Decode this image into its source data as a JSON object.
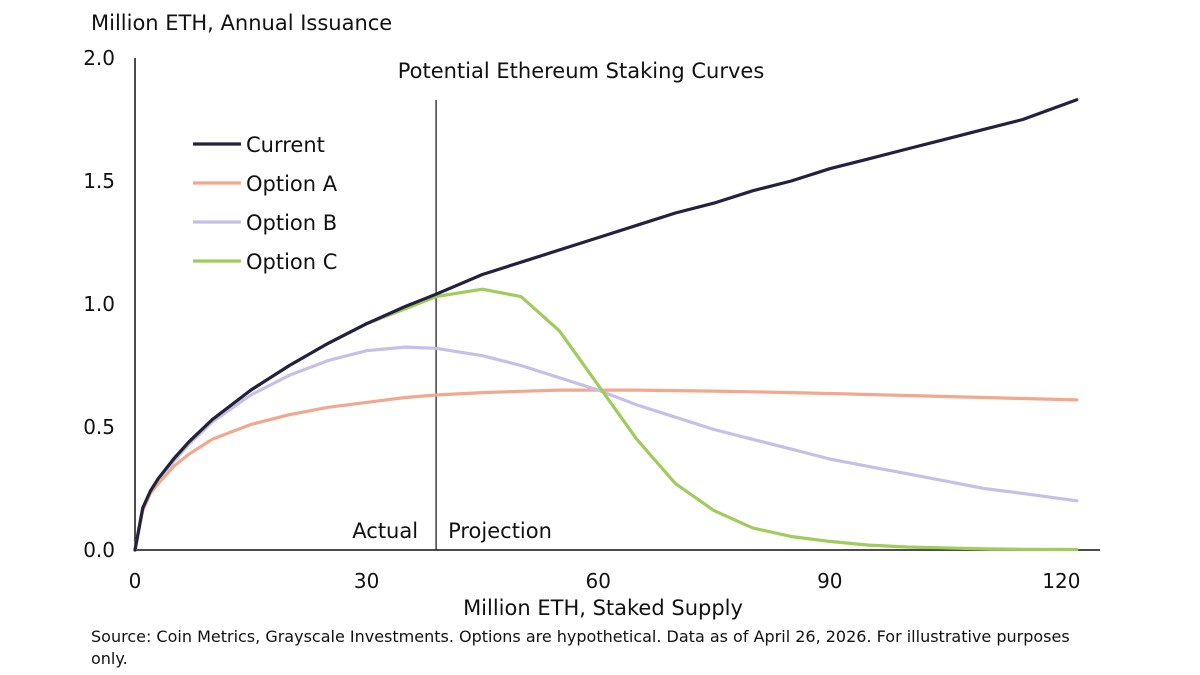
{
  "chart_data": {
    "type": "line",
    "title": "Potential Ethereum Staking Curves",
    "ylabel": "Million ETH, Annual Issuance",
    "xlabel": "Million ETH, Staked Supply",
    "xlim": [
      0,
      125
    ],
    "ylim": [
      0,
      2.0
    ],
    "x_ticks": [
      0,
      30,
      60,
      90,
      120
    ],
    "x_tick_labels": [
      "0",
      "30",
      "60",
      "90",
      "120"
    ],
    "y_ticks": [
      0,
      0.5,
      1.0,
      1.5,
      2.0
    ],
    "y_tick_labels": [
      "0.0",
      "0.5",
      "1.0",
      "1.5",
      "2.0"
    ],
    "grid": false,
    "legend_position": "top-left",
    "divider_x": 39,
    "annotations": {
      "left": "Actual",
      "right": "Projection"
    },
    "series": [
      {
        "name": "Current",
        "color": "#24213f",
        "x": [
          0,
          1,
          2,
          3,
          5,
          7,
          10,
          15,
          20,
          25,
          30,
          35,
          39,
          45,
          50,
          55,
          60,
          65,
          70,
          75,
          80,
          85,
          90,
          95,
          100,
          105,
          110,
          115,
          122
        ],
        "y": [
          0,
          0.17,
          0.24,
          0.29,
          0.37,
          0.44,
          0.53,
          0.65,
          0.75,
          0.84,
          0.92,
          0.99,
          1.04,
          1.12,
          1.17,
          1.22,
          1.27,
          1.32,
          1.37,
          1.41,
          1.46,
          1.5,
          1.55,
          1.59,
          1.63,
          1.67,
          1.71,
          1.75,
          1.83
        ]
      },
      {
        "name": "Option A",
        "color": "#f2a88e",
        "x": [
          0,
          1,
          2,
          3,
          5,
          7,
          10,
          15,
          20,
          25,
          30,
          35,
          39,
          45,
          50,
          55,
          60,
          65,
          70,
          75,
          80,
          85,
          90,
          95,
          100,
          105,
          110,
          115,
          122
        ],
        "y": [
          0,
          0.16,
          0.23,
          0.27,
          0.34,
          0.39,
          0.45,
          0.51,
          0.55,
          0.58,
          0.6,
          0.62,
          0.63,
          0.64,
          0.645,
          0.65,
          0.65,
          0.65,
          0.648,
          0.646,
          0.643,
          0.64,
          0.636,
          0.632,
          0.628,
          0.624,
          0.62,
          0.616,
          0.61
        ]
      },
      {
        "name": "Option B",
        "color": "#c6c0e8",
        "x": [
          0,
          1,
          2,
          3,
          5,
          7,
          10,
          15,
          20,
          25,
          30,
          35,
          39,
          45,
          50,
          55,
          60,
          65,
          70,
          75,
          80,
          85,
          90,
          95,
          100,
          105,
          110,
          115,
          122
        ],
        "y": [
          0,
          0.17,
          0.24,
          0.29,
          0.36,
          0.43,
          0.52,
          0.63,
          0.71,
          0.77,
          0.81,
          0.825,
          0.82,
          0.79,
          0.75,
          0.7,
          0.65,
          0.59,
          0.54,
          0.49,
          0.45,
          0.41,
          0.37,
          0.34,
          0.31,
          0.28,
          0.25,
          0.23,
          0.2
        ]
      },
      {
        "name": "Option C",
        "color": "#9fcc5a",
        "x": [
          0,
          1,
          2,
          3,
          5,
          7,
          10,
          15,
          20,
          25,
          30,
          35,
          39,
          45,
          50,
          55,
          60,
          65,
          70,
          75,
          80,
          85,
          90,
          95,
          100,
          105,
          110,
          115,
          122
        ],
        "y": [
          0,
          0.17,
          0.24,
          0.29,
          0.37,
          0.44,
          0.53,
          0.65,
          0.75,
          0.84,
          0.92,
          0.98,
          1.03,
          1.06,
          1.03,
          0.89,
          0.67,
          0.45,
          0.27,
          0.16,
          0.09,
          0.055,
          0.035,
          0.02,
          0.012,
          0.008,
          0.005,
          0.003,
          0.002
        ]
      }
    ]
  },
  "source_note": "Source: Coin Metrics, Grayscale Investments. Options are hypothetical. Data as of April 26, 2026. For illustrative purposes only."
}
